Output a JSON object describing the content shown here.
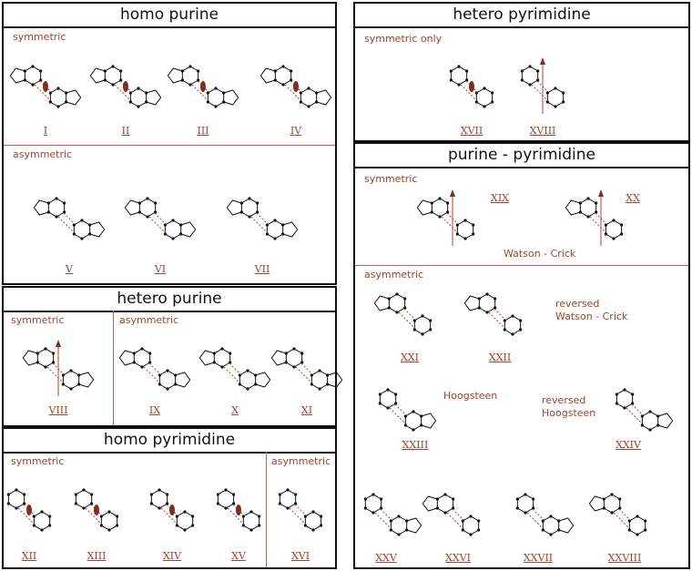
{
  "panels": {
    "homo_purine": {
      "title": "homo  purine",
      "symmetric": "symmetric",
      "asymmetric": "asymmetric",
      "labels": [
        "I",
        "II",
        "III",
        "IV",
        "V",
        "VI",
        "VII"
      ]
    },
    "hetero_purine": {
      "title": "hetero  purine",
      "symmetric": "symmetric",
      "asymmetric": "asymmetric",
      "labels": [
        "VIII",
        "IX",
        "X",
        "XI"
      ]
    },
    "homo_pyrimidine": {
      "title": "homo  pyrimidine",
      "symmetric": "symmetric",
      "asymmetric": "asymmetric",
      "labels": [
        "XII",
        "XIII",
        "XIV",
        "XV",
        "XVI"
      ]
    },
    "hetero_pyrimidine": {
      "title": "hetero  pyrimidine",
      "symmetric": "symmetric only",
      "labels": [
        "XVII",
        "XVIII"
      ]
    },
    "purine_pyrimidine": {
      "title": "purine - pyrimidine",
      "symmetric": "symmetric",
      "asymmetric": "asymmetric",
      "labels": [
        "XIX",
        "XX",
        "XXI",
        "XXII",
        "XXIII",
        "XXIV",
        "XXV",
        "XXVI",
        "XXVII",
        "XXVIII"
      ],
      "notes": {
        "watson_crick": "Watson - Crick",
        "reversed_wc_1": "reversed",
        "reversed_wc_2": "Watson - Crick",
        "hoogsteen": "Hoogsteen",
        "reversed_h_1": "reversed",
        "reversed_h_2": "Hoogsteen"
      }
    }
  },
  "colors": {
    "accent": "#a0422e",
    "lines": "#111111",
    "hbond": "#c0392b"
  }
}
